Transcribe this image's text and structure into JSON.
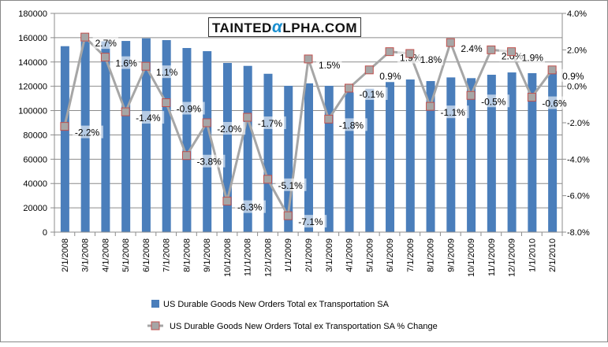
{
  "chart_data": {
    "type": "bar",
    "categories": [
      "2/1/2008",
      "3/1/2008",
      "4/1/2008",
      "5/1/2008",
      "6/1/2008",
      "7/1/2008",
      "8/1/2008",
      "9/1/2008",
      "10/1/2008",
      "11/1/2008",
      "12/1/2008",
      "1/1/2009",
      "2/1/2009",
      "3/1/2009",
      "4/1/2009",
      "5/1/2009",
      "6/1/2009",
      "7/1/2009",
      "8/1/2009",
      "9/1/2009",
      "10/1/2009",
      "11/1/2009",
      "12/1/2009",
      "1/1/2010",
      "2/1/2010"
    ],
    "series": [
      {
        "name": "US Durable Goods New Orders Total  ex Transportation  SA",
        "type": "bar",
        "axis": "left",
        "color": "#4a7ebb",
        "values": [
          153000,
          156900,
          157000,
          157300,
          159500,
          158000,
          151500,
          148900,
          139200,
          136800,
          130300,
          120400,
          122400,
          120400,
          115000,
          118000,
          123500,
          125600,
          124300,
          127300,
          126700,
          129500,
          131400,
          130800,
          132500
        ]
      },
      {
        "name": "US Durable Goods New Orders Total  ex Transportation  SA % Change",
        "type": "line",
        "axis": "right",
        "color": "#a6a6a6",
        "marker_border": "#c0504d",
        "values": [
          -2.2,
          2.7,
          1.6,
          -1.4,
          1.1,
          -0.9,
          -3.8,
          -2.0,
          -6.3,
          -1.7,
          -5.1,
          -7.1,
          1.5,
          -1.8,
          -0.1,
          0.9,
          1.9,
          1.8,
          -1.1,
          2.4,
          -0.5,
          2.0,
          1.9,
          -0.6,
          0.9
        ],
        "labels": [
          "-2.2%",
          "2.7%",
          "1.6%",
          "-1.4%",
          "1.1%",
          "-0.9%",
          "-3.8%",
          "-2.0%",
          "-6.3%",
          "-1.7%",
          "-5.1%",
          "-7.1%",
          "1.5%",
          "-1.8%",
          "-0.1%",
          "0.9%",
          "1.9%",
          "1.8%",
          "-1.1%",
          "2.4%",
          "-0.5%",
          "2.0%",
          "1.9%",
          "-0.6%",
          "0.9%"
        ]
      }
    ],
    "ylim": [
      0,
      180000
    ],
    "yticks": [
      "0",
      "20000",
      "40000",
      "60000",
      "80000",
      "100000",
      "120000",
      "140000",
      "160000",
      "180000"
    ],
    "y2lim": [
      -8,
      4
    ],
    "y2ticks": [
      "-8.0%",
      "-6.0%",
      "-4.0%",
      "-2.0%",
      "0.0%",
      "2.0%",
      "4.0%"
    ],
    "grid": true,
    "legend_position": "bottom"
  },
  "logo": {
    "text_before": "TAINTED",
    "alpha": "α",
    "text_after": "LPHA.COM"
  }
}
